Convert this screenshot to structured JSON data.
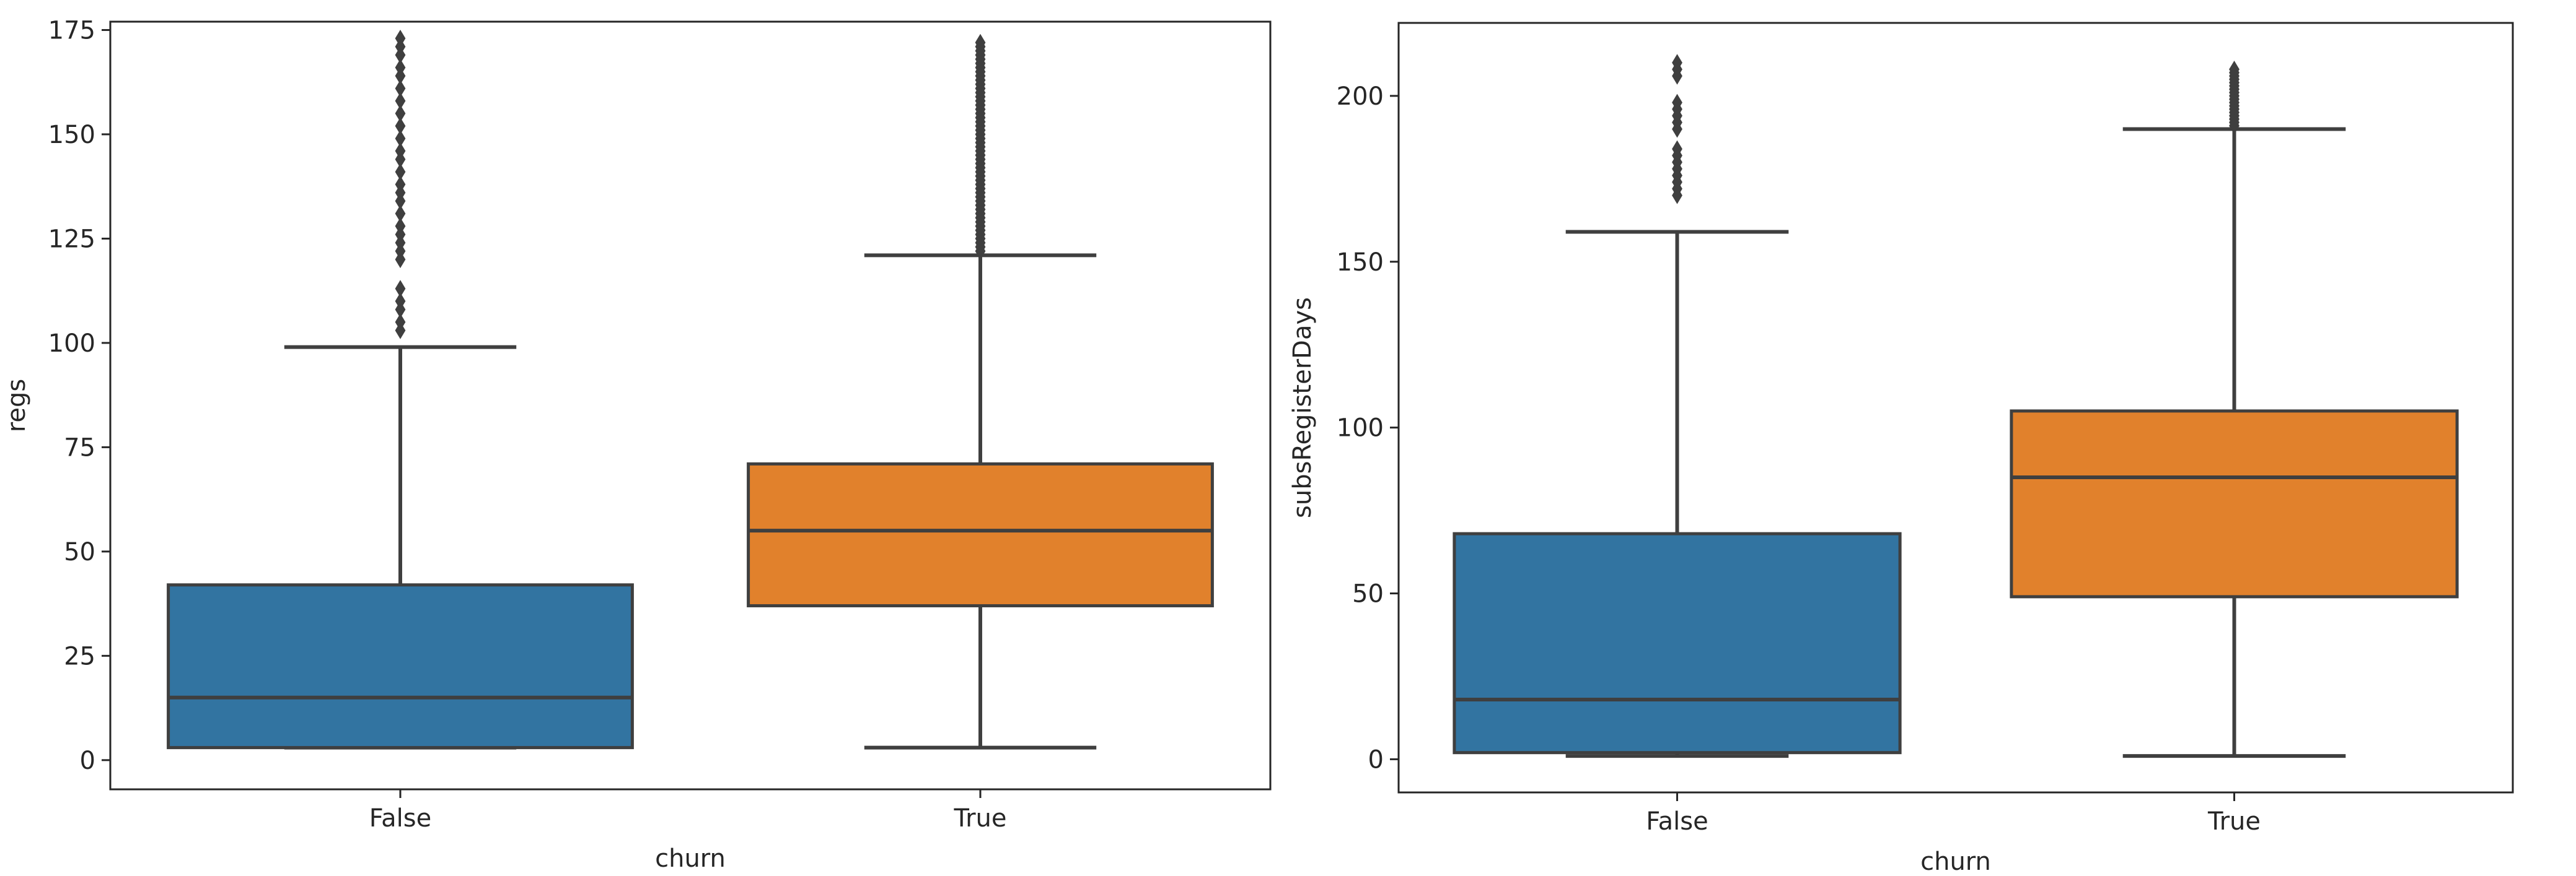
{
  "chart_data": [
    {
      "type": "box",
      "title": "",
      "xlabel": "churn",
      "ylabel": "regs",
      "ylim": [
        -7,
        177
      ],
      "yticks": [
        0,
        25,
        50,
        75,
        100,
        125,
        150,
        175
      ],
      "categories": [
        "False",
        "True"
      ],
      "boxes": [
        {
          "name": "False",
          "color": "#3274a1",
          "whisker_low": 3,
          "q1": 3,
          "median": 15,
          "q3": 42,
          "whisker_high": 99,
          "outliers": [
            103,
            105,
            108,
            110,
            113,
            120,
            122,
            124,
            126,
            128,
            131,
            134,
            136,
            138,
            141,
            144,
            146,
            149,
            152,
            155,
            158,
            161,
            164,
            166,
            169,
            171,
            173
          ]
        },
        {
          "name": "True",
          "color": "#e1812c",
          "whisker_low": 3,
          "q1": 37,
          "median": 55,
          "q3": 71,
          "whisker_high": 121,
          "outliers_range": [
            122,
            172
          ]
        }
      ]
    },
    {
      "type": "box",
      "title": "",
      "xlabel": "churn",
      "ylabel": "subsRegisterDays",
      "ylim": [
        -10,
        222
      ],
      "yticks": [
        0,
        50,
        100,
        150,
        200
      ],
      "categories": [
        "False",
        "True"
      ],
      "boxes": [
        {
          "name": "False",
          "color": "#3274a1",
          "whisker_low": 1,
          "q1": 2,
          "median": 18,
          "q3": 68,
          "whisker_high": 159,
          "outliers": [
            170,
            172,
            174,
            176,
            178,
            180,
            182,
            184,
            190,
            192,
            194,
            196,
            198,
            206,
            208,
            210
          ]
        },
        {
          "name": "True",
          "color": "#e1812c",
          "whisker_low": 1,
          "q1": 49,
          "median": 85,
          "q3": 105,
          "whisker_high": 190,
          "outliers_range": [
            191,
            208
          ]
        }
      ]
    }
  ]
}
